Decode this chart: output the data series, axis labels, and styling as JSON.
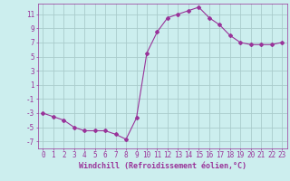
{
  "x": [
    0,
    1,
    2,
    3,
    4,
    5,
    6,
    7,
    8,
    9,
    10,
    11,
    12,
    13,
    14,
    15,
    16,
    17,
    18,
    19,
    20,
    21,
    22,
    23
  ],
  "y": [
    -3,
    -3.5,
    -4,
    -5,
    -5.5,
    -5.5,
    -5.5,
    -6,
    -6.7,
    -3.7,
    5.5,
    8.5,
    10.5,
    11.0,
    11.5,
    12.0,
    10.5,
    9.5,
    8.0,
    7.0,
    6.7,
    6.7,
    6.7,
    7.0
  ],
  "line_color": "#993399",
  "marker": "D",
  "marker_size": 2,
  "bg_color": "#cceeee",
  "grid_color": "#aacccc",
  "axis_color": "#993399",
  "xlabel": "Windchill (Refroidissement éolien,°C)",
  "xlabel_fontsize": 6,
  "tick_fontsize": 5.5,
  "yticks": [
    -7,
    -5,
    -3,
    -1,
    1,
    3,
    5,
    7,
    9,
    11
  ],
  "ylim": [
    -8,
    12.5
  ],
  "xlim": [
    -0.5,
    23.5
  ],
  "title": ""
}
